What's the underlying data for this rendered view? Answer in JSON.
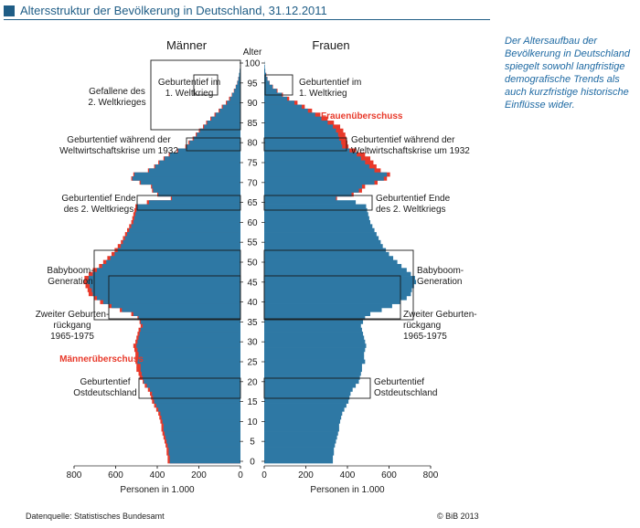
{
  "header": {
    "title": "Altersstruktur der Bevölkerung in Deutschland, 31.12.2011"
  },
  "side_note": "Der Altersaufbau der Bevölkerung in Deutschland spiegelt sowohl langfristige demografische Trends als auch kurzfristige historische Einflüsse wider.",
  "footer": {
    "source": "Datenquelle: Statistisches Bundesamt",
    "copyright": "© BiB 2013"
  },
  "colors": {
    "base": "#2e78a4",
    "surplus": "#e8392a",
    "frame": "#1a1a1a",
    "accent": "#1f5d86"
  },
  "chart_data": {
    "type": "bar",
    "orientation": "horizontal-population-pyramid",
    "title_left": "Männer",
    "title_right": "Frauen",
    "age_axis_title": "Alter",
    "age_ticks": [
      0,
      5,
      10,
      15,
      20,
      25,
      30,
      35,
      40,
      45,
      50,
      55,
      60,
      65,
      70,
      75,
      80,
      85,
      90,
      95,
      100
    ],
    "xlabel": "Personen in 1.000",
    "xlim": [
      0,
      800
    ],
    "x_ticks": [
      0,
      200,
      400,
      600,
      800
    ],
    "ages": [
      0,
      1,
      2,
      3,
      4,
      5,
      6,
      7,
      8,
      9,
      10,
      11,
      12,
      13,
      14,
      15,
      16,
      17,
      18,
      19,
      20,
      21,
      22,
      23,
      24,
      25,
      26,
      27,
      28,
      29,
      30,
      31,
      32,
      33,
      34,
      35,
      36,
      37,
      38,
      39,
      40,
      41,
      42,
      43,
      44,
      45,
      46,
      47,
      48,
      49,
      50,
      51,
      52,
      53,
      54,
      55,
      56,
      57,
      58,
      59,
      60,
      61,
      62,
      63,
      64,
      65,
      66,
      67,
      68,
      69,
      70,
      71,
      72,
      73,
      74,
      75,
      76,
      77,
      78,
      79,
      80,
      81,
      82,
      83,
      84,
      85,
      86,
      87,
      88,
      89,
      90,
      91,
      92,
      93,
      94,
      95,
      96,
      97,
      98,
      99,
      100
    ],
    "series": [
      {
        "name": "Männer",
        "values": [
          340,
          340,
          345,
          345,
          350,
          355,
          360,
          365,
          370,
          370,
          375,
          380,
          385,
          395,
          405,
          415,
          420,
          425,
          435,
          450,
          465,
          470,
          475,
          480,
          480,
          495,
          490,
          490,
          495,
          500,
          495,
          490,
          485,
          480,
          470,
          480,
          490,
          515,
          570,
          620,
          660,
          690,
          710,
          715,
          725,
          735,
          730,
          710,
          690,
          665,
          645,
          625,
          605,
          590,
          575,
          565,
          555,
          545,
          535,
          525,
          515,
          510,
          505,
          500,
          495,
          440,
          330,
          395,
          420,
          425,
          480,
          520,
          510,
          440,
          410,
          390,
          365,
          340,
          300,
          260,
          245,
          225,
          210,
          195,
          175,
          160,
          140,
          120,
          100,
          85,
          65,
          50,
          40,
          30,
          22,
          15,
          10,
          7,
          4,
          2,
          1
        ]
      },
      {
        "name": "Frauen",
        "values": [
          330,
          330,
          335,
          335,
          340,
          345,
          350,
          355,
          360,
          360,
          365,
          370,
          375,
          385,
          395,
          405,
          410,
          415,
          425,
          440,
          455,
          460,
          465,
          470,
          470,
          485,
          480,
          480,
          485,
          490,
          485,
          480,
          475,
          470,
          465,
          475,
          485,
          510,
          565,
          615,
          655,
          685,
          705,
          710,
          720,
          730,
          725,
          705,
          685,
          660,
          640,
          620,
          600,
          585,
          570,
          560,
          550,
          540,
          530,
          520,
          510,
          505,
          500,
          495,
          490,
          440,
          345,
          420,
          455,
          470,
          530,
          575,
          590,
          530,
          505,
          485,
          465,
          445,
          410,
          375,
          370,
          360,
          355,
          345,
          330,
          305,
          275,
          245,
          210,
          180,
          145,
          110,
          85,
          60,
          40,
          25,
          15,
          9,
          5,
          3,
          1
        ]
      },
      {
        "name": "Männerüberschuss",
        "values": [
          350,
          350,
          355,
          355,
          360,
          365,
          370,
          375,
          380,
          380,
          385,
          390,
          395,
          405,
          415,
          425,
          430,
          435,
          445,
          460,
          470,
          485,
          490,
          500,
          500,
          505,
          505,
          505,
          510,
          515,
          505,
          500,
          495,
          490,
          480,
          485,
          495,
          525,
          580,
          635,
          675,
          705,
          730,
          735,
          745,
          755,
          750,
          730,
          710,
          680,
          660,
          640,
          620,
          605,
          590,
          575,
          565,
          555,
          545,
          535,
          525,
          520,
          515,
          510,
          505,
          450,
          335,
          400,
          425,
          430,
          485,
          525,
          515,
          445,
          415,
          395,
          370,
          345,
          305,
          265,
          250,
          230,
          215,
          200,
          180,
          165,
          145,
          125,
          105,
          90,
          70,
          55,
          42,
          32,
          23,
          16,
          11,
          7,
          4,
          2,
          1
        ]
      },
      {
        "name": "Frauenüberschuss",
        "values": [
          330,
          330,
          335,
          335,
          340,
          345,
          350,
          355,
          360,
          360,
          365,
          370,
          375,
          385,
          395,
          405,
          410,
          415,
          425,
          440,
          455,
          460,
          465,
          470,
          470,
          485,
          480,
          480,
          485,
          490,
          485,
          480,
          475,
          470,
          465,
          475,
          485,
          510,
          565,
          615,
          655,
          685,
          705,
          710,
          720,
          730,
          725,
          705,
          685,
          660,
          640,
          620,
          600,
          585,
          570,
          560,
          550,
          540,
          530,
          520,
          510,
          505,
          500,
          495,
          490,
          440,
          350,
          430,
          470,
          485,
          545,
          590,
          605,
          560,
          540,
          525,
          510,
          485,
          440,
          405,
          400,
          395,
          390,
          380,
          365,
          335,
          305,
          270,
          230,
          195,
          160,
          120,
          90,
          64,
          42,
          26,
          16,
          10,
          5,
          3,
          1
        ]
      }
    ],
    "labels": {
      "surplus_female": "Frauenüberschuss",
      "surplus_male": "Männerüberschuss"
    },
    "annotations": [
      {
        "side": "left",
        "text": [
          "Gefallene des",
          "2. Weltkrieges"
        ],
        "age_from": 82,
        "age_to": 100
      },
      {
        "side": "both",
        "text": [
          "Geburtentief im",
          "1. Weltkrieg"
        ],
        "age_from": 92,
        "age_to": 97
      },
      {
        "side": "both",
        "text": [
          "Geburtentief während der",
          "Weltwirtschaftskrise um 1932"
        ],
        "age_from": 78,
        "age_to": 81
      },
      {
        "side": "both",
        "text": [
          "Geburtentief Ende",
          "des 2. Weltkriegs"
        ],
        "age_from": 63,
        "age_to": 67
      },
      {
        "side": "both",
        "text": [
          "Babyboom-",
          "Generation"
        ],
        "age_from": 38,
        "age_to": 53
      },
      {
        "side": "both",
        "text": [
          "Zweiter Geburten-",
          "rückgang",
          "1965-1975"
        ],
        "age_from": 35,
        "age_to": 47
      },
      {
        "side": "both",
        "text": [
          "Geburtentief",
          "Ostdeutschland"
        ],
        "age_from": 16,
        "age_to": 21
      }
    ]
  }
}
